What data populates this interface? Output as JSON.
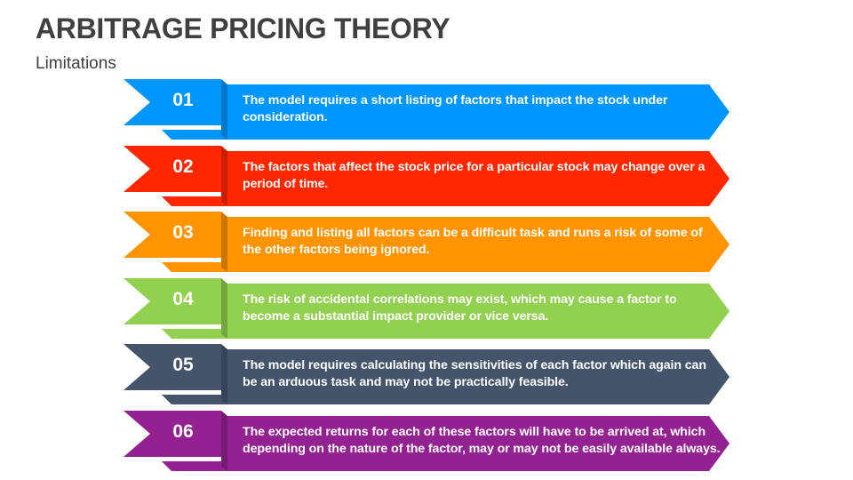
{
  "header": {
    "title": "ARBITRAGE PRICING THEORY",
    "subtitle": "Limitations"
  },
  "items": [
    {
      "number": "01",
      "text": "The model requires a short listing of factors that impact the stock under consideration.",
      "color": "#0096FF",
      "dark": "#0078CC"
    },
    {
      "number": "02",
      "text": "The factors that affect the stock price for a particular stock may change over a period of time.",
      "color": "#FF2600",
      "dark": "#CC1E00"
    },
    {
      "number": "03",
      "text": "Finding and listing all factors can be a difficult task and runs a risk of some of the other factors being ignored.",
      "color": "#FF9300",
      "dark": "#CC7600"
    },
    {
      "number": "04",
      "text": "The risk of accidental correlations may exist, which may cause a factor to become a substantial impact provider or vice versa.",
      "color": "#92D050",
      "dark": "#74A640"
    },
    {
      "number": "05",
      "text": "The model requires calculating the sensitivities of each factor which again can be an arduous task and may not be practically feasible.",
      "color": "#44546A",
      "dark": "#36435500"
    },
    {
      "number": "06",
      "text": "The expected returns for each of these factors will have to be arrived at, which depending on the nature of the factor, may or may not be easily available always.",
      "color": "#942192",
      "dark": "#761A74"
    }
  ]
}
